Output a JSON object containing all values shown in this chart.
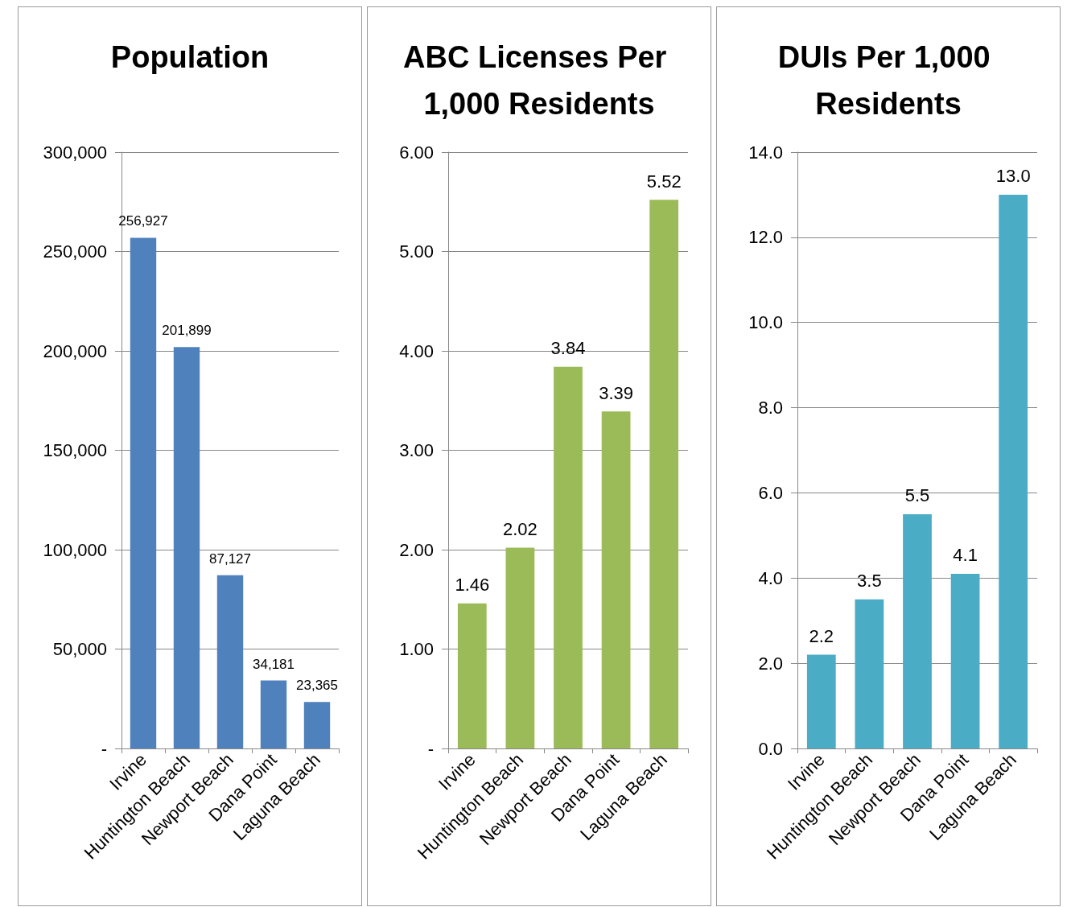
{
  "chart_data": [
    {
      "type": "bar",
      "title": "Population",
      "categories": [
        "Irvine",
        "Huntington Beach",
        "Newport Beach",
        "Dana Point",
        "Laguna Beach"
      ],
      "values": [
        256927,
        201899,
        87127,
        34181,
        23365
      ],
      "value_labels": [
        "256,927",
        "201,899",
        "87,127",
        "34,181",
        "23,365"
      ],
      "color": "#4f81bd",
      "ylim": [
        0,
        300000
      ],
      "yticks": [
        {
          "value": 0,
          "label": "-"
        },
        {
          "value": 50000,
          "label": "50,000"
        },
        {
          "value": 100000,
          "label": "100,000"
        },
        {
          "value": 150000,
          "label": "150,000"
        },
        {
          "value": 200000,
          "label": "200,000"
        },
        {
          "value": 250000,
          "label": "250,000"
        },
        {
          "value": 300000,
          "label": "300,000"
        }
      ],
      "grid": "y"
    },
    {
      "type": "bar",
      "title": "ABC Licenses Per 1,000 Residents",
      "categories": [
        "Irvine",
        "Huntington Beach",
        "Newport Beach",
        "Dana Point",
        "Laguna Beach"
      ],
      "values": [
        1.46,
        2.02,
        3.84,
        3.39,
        5.52
      ],
      "value_labels": [
        "1.46",
        "2.02",
        "3.84",
        "3.39",
        "5.52"
      ],
      "color": "#9bbb59",
      "ylim": [
        0,
        6
      ],
      "yticks": [
        {
          "value": 0,
          "label": "-"
        },
        {
          "value": 1,
          "label": "1.00"
        },
        {
          "value": 2,
          "label": "2.00"
        },
        {
          "value": 3,
          "label": "3.00"
        },
        {
          "value": 4,
          "label": "4.00"
        },
        {
          "value": 5,
          "label": "5.00"
        },
        {
          "value": 6,
          "label": "6.00"
        }
      ],
      "grid": "y"
    },
    {
      "type": "bar",
      "title": "DUIs Per 1,000 Residents",
      "categories": [
        "Irvine",
        "Huntington Beach",
        "Newport Beach",
        "Dana Point",
        "Laguna Beach"
      ],
      "values": [
        2.2,
        3.5,
        5.5,
        4.1,
        13.0
      ],
      "value_labels": [
        "2.2",
        "3.5",
        "5.5",
        "4.1",
        "13.0"
      ],
      "color": "#4bacc6",
      "ylim": [
        0,
        14
      ],
      "yticks": [
        {
          "value": 0,
          "label": "0.0"
        },
        {
          "value": 2,
          "label": "2.0"
        },
        {
          "value": 4,
          "label": "4.0"
        },
        {
          "value": 6,
          "label": "6.0"
        },
        {
          "value": 8,
          "label": "8.0"
        },
        {
          "value": 10,
          "label": "10.0"
        },
        {
          "value": 12,
          "label": "12.0"
        },
        {
          "value": 14,
          "label": "14.0"
        }
      ],
      "grid": "y"
    }
  ]
}
